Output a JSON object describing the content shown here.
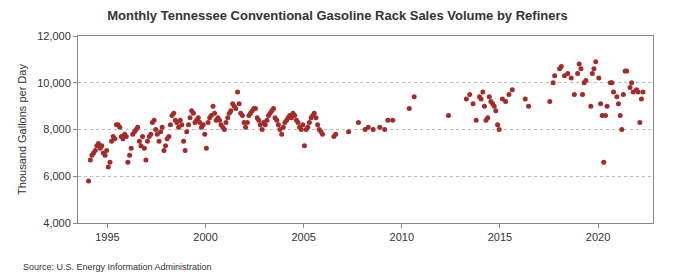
{
  "chart_data": {
    "type": "scatter",
    "title": "Monthly Tennessee Conventional Gasoline Rack Sales Volume by Refiners",
    "y_label": "Thousand Gallons per Day",
    "source": "Source: U.S. Energy Information Administration",
    "color": "#a52a2a",
    "marker": "circle",
    "grid": true,
    "xlim": [
      1993.5,
      2022.8
    ],
    "xticks": [
      1995,
      2000,
      2005,
      2010,
      2015,
      2020
    ],
    "ylim": [
      4000,
      12000
    ],
    "yticks": [
      {
        "value": 4000,
        "label": "4,000"
      },
      {
        "value": 6000,
        "label": "6,000"
      },
      {
        "value": 8000,
        "label": "8,000"
      },
      {
        "value": 10000,
        "label": "10,000"
      },
      {
        "value": 12000,
        "label": "12,000"
      }
    ],
    "x": [
      1994.04,
      1994.13,
      1994.21,
      1994.29,
      1994.38,
      1994.46,
      1994.54,
      1994.63,
      1994.71,
      1994.79,
      1994.88,
      1994.96,
      1995.04,
      1995.13,
      1995.21,
      1995.29,
      1995.38,
      1995.46,
      1995.54,
      1995.63,
      1995.71,
      1995.79,
      1995.88,
      1995.96,
      1996.04,
      1996.13,
      1996.21,
      1996.29,
      1996.38,
      1996.46,
      1996.54,
      1996.63,
      1996.71,
      1996.79,
      1996.88,
      1996.96,
      1997.04,
      1997.13,
      1997.21,
      1997.29,
      1997.38,
      1997.46,
      1997.54,
      1997.63,
      1997.71,
      1997.79,
      1997.88,
      1997.96,
      1998.04,
      1998.13,
      1998.21,
      1998.29,
      1998.38,
      1998.46,
      1998.54,
      1998.63,
      1998.71,
      1998.79,
      1998.88,
      1998.96,
      1999.04,
      1999.13,
      1999.21,
      1999.29,
      1999.38,
      1999.46,
      1999.54,
      1999.63,
      1999.71,
      1999.79,
      1999.88,
      1999.96,
      2000.04,
      2000.13,
      2000.21,
      2000.29,
      2000.38,
      2000.46,
      2000.54,
      2000.63,
      2000.71,
      2000.79,
      2000.88,
      2000.96,
      2001.04,
      2001.13,
      2001.21,
      2001.29,
      2001.38,
      2001.46,
      2001.54,
      2001.63,
      2001.71,
      2001.79,
      2001.88,
      2001.96,
      2002.04,
      2002.13,
      2002.21,
      2002.29,
      2002.38,
      2002.46,
      2002.54,
      2002.63,
      2002.71,
      2002.79,
      2002.88,
      2002.96,
      2003.04,
      2003.13,
      2003.21,
      2003.29,
      2003.38,
      2003.46,
      2003.54,
      2003.63,
      2003.71,
      2003.79,
      2003.88,
      2003.96,
      2004.04,
      2004.13,
      2004.21,
      2004.29,
      2004.38,
      2004.46,
      2004.54,
      2004.63,
      2004.71,
      2004.79,
      2004.88,
      2004.96,
      2005.04,
      2005.13,
      2005.21,
      2005.29,
      2005.38,
      2005.46,
      2005.54,
      2005.63,
      2005.71,
      2005.79,
      2005.88,
      2005.96,
      2006.54,
      2006.63,
      2007.29,
      2007.79,
      2008.13,
      2008.29,
      2008.54,
      2008.88,
      2009.13,
      2009.29,
      2009.54,
      2010.38,
      2010.63,
      2012.38,
      2013.29,
      2013.46,
      2013.63,
      2013.79,
      2013.96,
      2014.04,
      2014.13,
      2014.21,
      2014.29,
      2014.38,
      2014.46,
      2014.54,
      2014.63,
      2014.71,
      2014.79,
      2014.88,
      2014.96,
      2015.13,
      2015.29,
      2015.46,
      2015.63,
      2016.29,
      2016.46,
      2017.54,
      2017.71,
      2017.79,
      2018.04,
      2018.13,
      2018.29,
      2018.46,
      2018.63,
      2018.79,
      2018.96,
      2019.04,
      2019.13,
      2019.21,
      2019.29,
      2019.38,
      2019.63,
      2019.71,
      2019.79,
      2019.88,
      2020.04,
      2020.13,
      2020.21,
      2020.29,
      2020.38,
      2020.46,
      2020.63,
      2020.71,
      2020.79,
      2020.96,
      2021.04,
      2021.13,
      2021.21,
      2021.29,
      2021.38,
      2021.46,
      2021.63,
      2021.71,
      2021.79,
      2021.96,
      2022.04,
      2022.13,
      2022.21,
      2022.29
    ],
    "values": [
      5800,
      6700,
      6900,
      7000,
      7100,
      7300,
      7400,
      7200,
      7300,
      7000,
      6900,
      7100,
      6400,
      6600,
      7500,
      7700,
      7600,
      8200,
      8200,
      8100,
      7700,
      7600,
      7800,
      7700,
      6600,
      6900,
      7200,
      7800,
      7900,
      8000,
      8100,
      7500,
      7300,
      7700,
      7200,
      6700,
      7500,
      7700,
      7800,
      8300,
      8400,
      8000,
      7800,
      7500,
      7900,
      8100,
      7100,
      7300,
      7600,
      7700,
      8200,
      8600,
      8700,
      8400,
      8300,
      8100,
      8400,
      8200,
      7500,
      7100,
      7900,
      8200,
      8500,
      8800,
      8700,
      8300,
      8400,
      8500,
      8300,
      8100,
      8200,
      7800,
      7200,
      8300,
      8500,
      8600,
      9000,
      8700,
      8400,
      8500,
      8400,
      8200,
      8100,
      8000,
      8300,
      8500,
      8700,
      8800,
      9100,
      9000,
      8900,
      9600,
      9100,
      8700,
      8600,
      8300,
      8100,
      8300,
      8600,
      8700,
      8800,
      8900,
      8900,
      8500,
      8400,
      8200,
      8000,
      8300,
      8200,
      8400,
      8600,
      8700,
      8800,
      8900,
      8500,
      8400,
      8200,
      8000,
      7800,
      8100,
      8300,
      8400,
      8500,
      8600,
      8500,
      8700,
      8600,
      8400,
      8300,
      8100,
      8000,
      8200,
      7300,
      8000,
      8100,
      8300,
      8500,
      8600,
      8700,
      8500,
      8200,
      8000,
      7900,
      7800,
      7700,
      7800,
      7900,
      8300,
      8000,
      8100,
      8000,
      8100,
      8000,
      8400,
      8400,
      8900,
      9400,
      8600,
      9300,
      9500,
      9100,
      8400,
      9400,
      9300,
      9600,
      9000,
      8400,
      8500,
      9400,
      9200,
      9100,
      9000,
      8800,
      8200,
      8000,
      9300,
      9200,
      9500,
      9700,
      9300,
      9000,
      9200,
      10000,
      10300,
      10600,
      10700,
      10300,
      10400,
      10200,
      9500,
      10400,
      10800,
      10600,
      9500,
      10000,
      10100,
      9000,
      10400,
      10600,
      10900,
      10200,
      9100,
      8600,
      6600,
      8600,
      9000,
      10000,
      10000,
      9600,
      9400,
      9100,
      8600,
      8000,
      9500,
      10500,
      10500,
      9800,
      10000,
      9600,
      9700,
      9600,
      8300,
      9300,
      9600
    ]
  }
}
